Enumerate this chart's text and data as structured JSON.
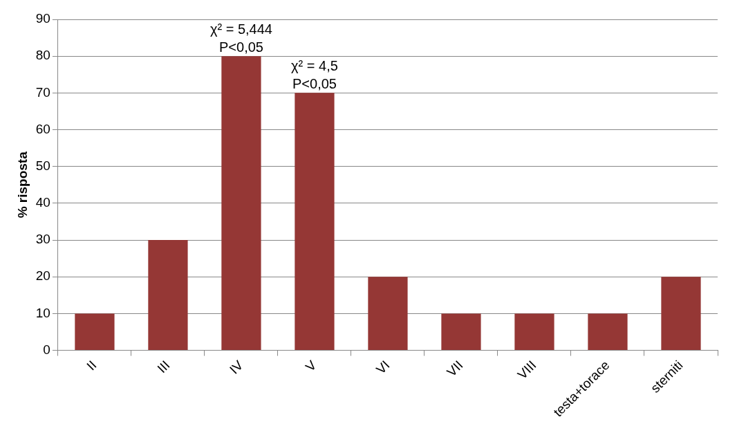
{
  "chart_data": {
    "type": "bar",
    "ylabel": "% risposta",
    "categories": [
      "II",
      "III",
      "IV",
      "V",
      "VI",
      "VII",
      "VIII",
      "testa+torace",
      "sterniti"
    ],
    "values": [
      10,
      30,
      80,
      70,
      20,
      10,
      10,
      10,
      20
    ],
    "color": "#953735",
    "ylim": [
      0,
      90
    ],
    "yticks": [
      0,
      10,
      20,
      30,
      40,
      50,
      60,
      70,
      80,
      90
    ],
    "grid": "y",
    "legend": false,
    "annotations": [
      {
        "text": "χ² = 5,444",
        "x": "IV",
        "y": 80
      },
      {
        "text": "P<0,05",
        "x": "IV",
        "y": 80
      },
      {
        "text": "χ² = 4,5",
        "x": "V",
        "y": 70
      },
      {
        "text": "P<0,05",
        "x": "V",
        "y": 70
      }
    ]
  }
}
